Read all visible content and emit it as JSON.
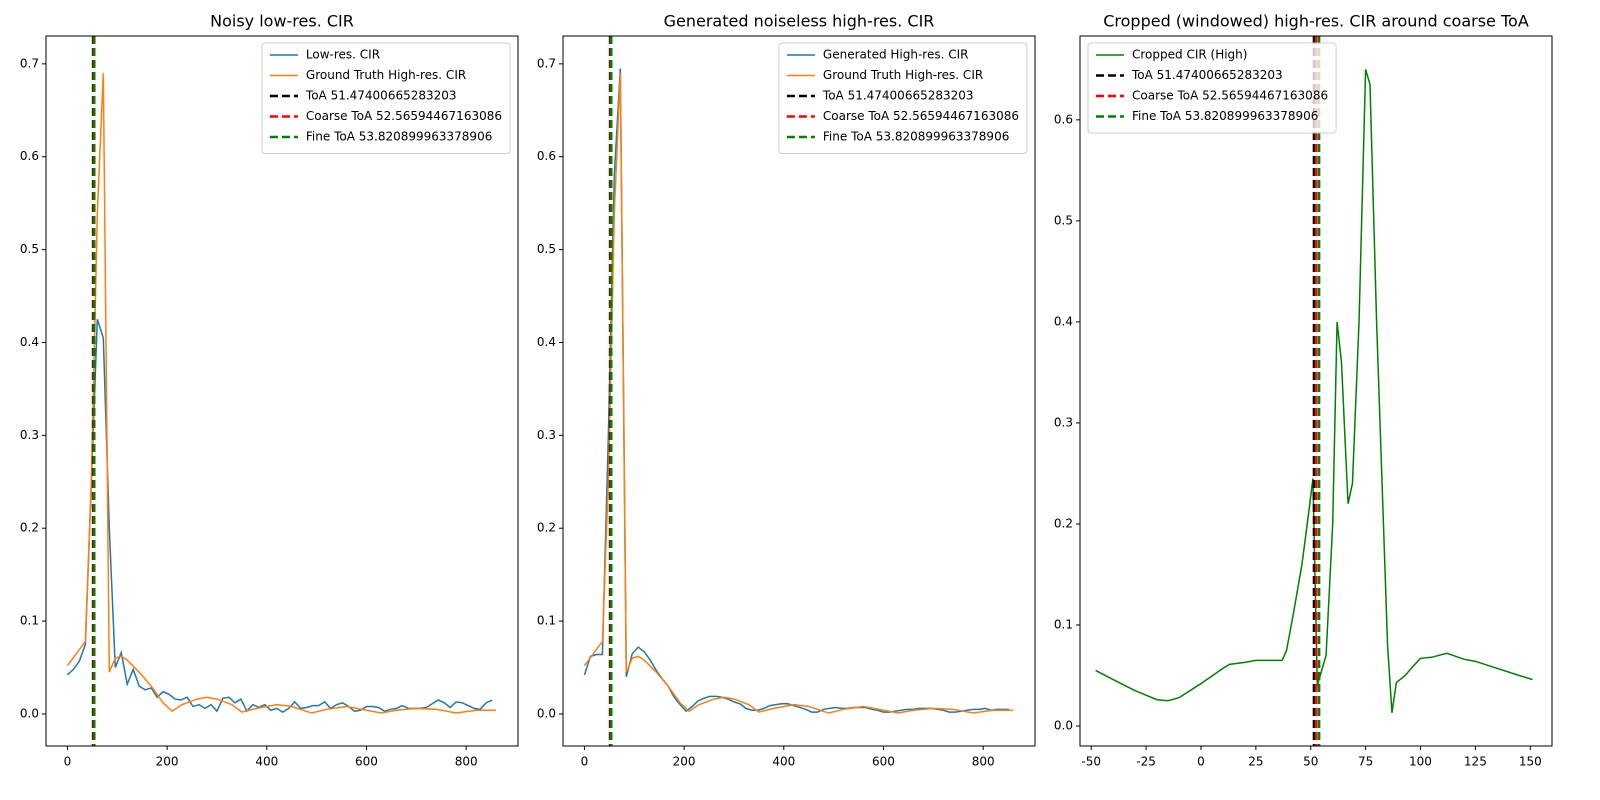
{
  "chart_data": [
    {
      "type": "line",
      "title": "Noisy low-res. CIR",
      "xlim": [
        -43,
        904
      ],
      "ylim": [
        -0.0345,
        0.73
      ],
      "xticks": [
        0,
        200,
        400,
        600,
        800
      ],
      "yticks": [
        {
          "value": 0,
          "label": "0.0"
        },
        0.1,
        0.2,
        0.3,
        0.4,
        0.5,
        0.6,
        0.7
      ],
      "legend": "upper right",
      "series": [
        {
          "name": "Low-res. CIR",
          "color": "#1f77b4",
          "x": [
            0,
            12,
            24,
            36,
            60,
            72,
            84,
            96,
            108,
            120,
            132,
            144,
            156,
            168,
            180,
            192,
            204,
            216,
            228,
            240,
            252,
            264,
            276,
            288,
            300,
            312,
            324,
            336,
            348,
            360,
            372,
            384,
            396,
            408,
            420,
            432,
            444,
            456,
            468,
            480,
            492,
            504,
            516,
            528,
            540,
            552,
            564,
            576,
            588,
            600,
            612,
            624,
            636,
            648,
            660,
            672,
            684,
            696,
            708,
            720,
            732,
            744,
            756,
            768,
            780,
            792,
            804,
            816,
            828,
            840,
            852
          ],
          "values": [
            0.042,
            0.048,
            0.057,
            0.075,
            0.425,
            0.405,
            0.2,
            0.05,
            0.066,
            0.032,
            0.048,
            0.03,
            0.026,
            0.028,
            0.018,
            0.024,
            0.021,
            0.016,
            0.015,
            0.018,
            0.008,
            0.01,
            0.006,
            0.01,
            0.003,
            0.017,
            0.018,
            0.012,
            0.016,
            0.003,
            0.01,
            0.007,
            0.01,
            0.004,
            0.006,
            0.002,
            0.006,
            0.013,
            0.006,
            0.007,
            0.009,
            0.009,
            0.013,
            0.006,
            0.01,
            0.012,
            0.008,
            0.003,
            0.004,
            0.008,
            0.008,
            0.007,
            0.003,
            0.005,
            0.006,
            0.009,
            0.006,
            0.006,
            0.006,
            0.007,
            0.011,
            0.015,
            0.012,
            0.007,
            0.013,
            0.012,
            0.009,
            0.006,
            0.005,
            0.012,
            0.015
          ]
        },
        {
          "name": "Ground Truth High-res. CIR",
          "color": "#ff7f0e",
          "x": [
            0,
            36,
            48,
            60,
            72,
            84,
            96,
            108,
            120,
            144,
            168,
            192,
            210,
            230,
            260,
            280,
            300,
            330,
            350,
            380,
            420,
            450,
            490,
            520,
            560,
            600,
            630,
            660,
            700,
            740,
            780,
            820,
            860
          ],
          "values": [
            0.052,
            0.078,
            0.25,
            0.54,
            0.69,
            0.045,
            0.06,
            0.062,
            0.058,
            0.045,
            0.03,
            0.012,
            0.003,
            0.01,
            0.016,
            0.018,
            0.016,
            0.01,
            0.002,
            0.006,
            0.01,
            0.008,
            0.001,
            0.005,
            0.008,
            0.004,
            0.001,
            0.004,
            0.006,
            0.005,
            0.001,
            0.004,
            0.004
          ]
        }
      ],
      "vlines": [
        {
          "name": "ToA 51.47400665283203",
          "x": 51.47400665283203,
          "color": "#000000"
        },
        {
          "name": "Coarse ToA 52.56594467163086",
          "x": 52.56594467163086,
          "color": "#ff0000"
        },
        {
          "name": "Fine ToA 53.820899963378906",
          "x": 53.820899963378906,
          "color": "#008000"
        }
      ]
    },
    {
      "type": "line",
      "title": "Generated noiseless high-res. CIR",
      "xlim": [
        -43,
        904
      ],
      "ylim": [
        -0.0345,
        0.73
      ],
      "xticks": [
        0,
        200,
        400,
        600,
        800
      ],
      "yticks": [
        {
          "value": 0,
          "label": "0.0"
        },
        0.1,
        0.2,
        0.3,
        0.4,
        0.5,
        0.6,
        0.7
      ],
      "legend": "upper right",
      "series": [
        {
          "name": "Generated High-res. CIR",
          "color": "#1f77b4",
          "x": [
            0,
            12,
            24,
            36,
            48,
            60,
            72,
            84,
            96,
            108,
            120,
            132,
            144,
            156,
            168,
            180,
            192,
            204,
            216,
            228,
            240,
            252,
            264,
            276,
            288,
            300,
            312,
            324,
            336,
            348,
            360,
            372,
            384,
            396,
            408,
            420,
            432,
            444,
            456,
            468,
            480,
            492,
            504,
            516,
            528,
            540,
            552,
            564,
            576,
            588,
            600,
            612,
            624,
            636,
            648,
            660,
            672,
            684,
            696,
            708,
            720,
            732,
            744,
            756,
            768,
            780,
            792,
            804,
            816,
            828,
            840,
            852
          ],
          "values": [
            0.042,
            0.062,
            0.064,
            0.064,
            0.3,
            0.58,
            0.695,
            0.04,
            0.065,
            0.072,
            0.067,
            0.058,
            0.047,
            0.038,
            0.03,
            0.018,
            0.01,
            0.003,
            0.008,
            0.014,
            0.017,
            0.019,
            0.019,
            0.018,
            0.016,
            0.013,
            0.011,
            0.006,
            0.004,
            0.004,
            0.006,
            0.009,
            0.01,
            0.011,
            0.011,
            0.009,
            0.007,
            0.005,
            0.002,
            0.002,
            0.005,
            0.006,
            0.007,
            0.006,
            0.006,
            0.007,
            0.007,
            0.007,
            0.005,
            0.004,
            0.002,
            0.002,
            0.003,
            0.004,
            0.005,
            0.005,
            0.006,
            0.006,
            0.006,
            0.005,
            0.004,
            0.002,
            0.002,
            0.003,
            0.004,
            0.005,
            0.005,
            0.006,
            0.004,
            0.005,
            0.005,
            0.005
          ]
        },
        {
          "name": "Ground Truth High-res. CIR",
          "color": "#ff7f0e",
          "x": [
            0,
            36,
            48,
            60,
            72,
            84,
            96,
            108,
            120,
            144,
            168,
            192,
            210,
            230,
            260,
            280,
            300,
            330,
            350,
            380,
            420,
            450,
            490,
            520,
            560,
            600,
            630,
            660,
            700,
            740,
            780,
            820,
            860
          ],
          "values": [
            0.052,
            0.078,
            0.25,
            0.54,
            0.69,
            0.045,
            0.06,
            0.062,
            0.058,
            0.045,
            0.03,
            0.012,
            0.003,
            0.01,
            0.016,
            0.018,
            0.016,
            0.01,
            0.002,
            0.006,
            0.01,
            0.008,
            0.001,
            0.005,
            0.008,
            0.004,
            0.001,
            0.004,
            0.006,
            0.005,
            0.001,
            0.004,
            0.004
          ]
        }
      ],
      "vlines": [
        {
          "name": "ToA 51.47400665283203",
          "x": 51.47400665283203,
          "color": "#000000"
        },
        {
          "name": "Coarse ToA 52.56594467163086",
          "x": 52.56594467163086,
          "color": "#ff0000"
        },
        {
          "name": "Fine ToA 53.820899963378906",
          "x": 53.820899963378906,
          "color": "#008000"
        }
      ]
    },
    {
      "type": "line",
      "title": "Cropped (windowed) high-res. CIR around coarse ToA",
      "xlim": [
        -55.1,
        159.9
      ],
      "ylim": [
        -0.0198,
        0.683
      ],
      "xticks": [
        -50,
        -25,
        0,
        25,
        50,
        75,
        100,
        125,
        150
      ],
      "yticks": [
        {
          "value": 0,
          "label": "0.0"
        },
        0.1,
        0.2,
        0.3,
        0.4,
        0.5,
        0.6
      ],
      "legend": "upper left",
      "series": [
        {
          "name": "Cropped CIR (High)",
          "color": "#008000",
          "x": [
            -48,
            -40,
            -30,
            -20,
            -15,
            -10,
            0,
            10,
            13,
            20,
            25,
            30,
            37,
            39,
            42,
            46,
            49,
            51,
            53,
            57,
            60,
            62,
            64,
            67,
            69,
            72,
            75,
            77,
            80,
            85,
            87,
            89,
            93,
            97,
            100,
            105,
            112,
            120,
            125,
            135,
            145,
            151
          ],
          "values": [
            0.055,
            0.046,
            0.035,
            0.026,
            0.025,
            0.028,
            0.042,
            0.057,
            0.061,
            0.063,
            0.065,
            0.065,
            0.065,
            0.075,
            0.11,
            0.16,
            0.21,
            0.245,
            0.04,
            0.07,
            0.2,
            0.4,
            0.36,
            0.22,
            0.24,
            0.4,
            0.65,
            0.635,
            0.4,
            0.08,
            0.013,
            0.043,
            0.05,
            0.06,
            0.067,
            0.068,
            0.072,
            0.066,
            0.064,
            0.057,
            0.05,
            0.046
          ]
        }
      ],
      "vlines": [
        {
          "name": "ToA 51.47400665283203",
          "x": 51.47400665283203,
          "color": "#000000"
        },
        {
          "name": "Coarse ToA 52.56594467163086",
          "x": 52.56594467163086,
          "color": "#ff0000"
        },
        {
          "name": "Fine ToA 53.820899963378906",
          "x": 53.820899963378906,
          "color": "#008000"
        }
      ]
    }
  ]
}
